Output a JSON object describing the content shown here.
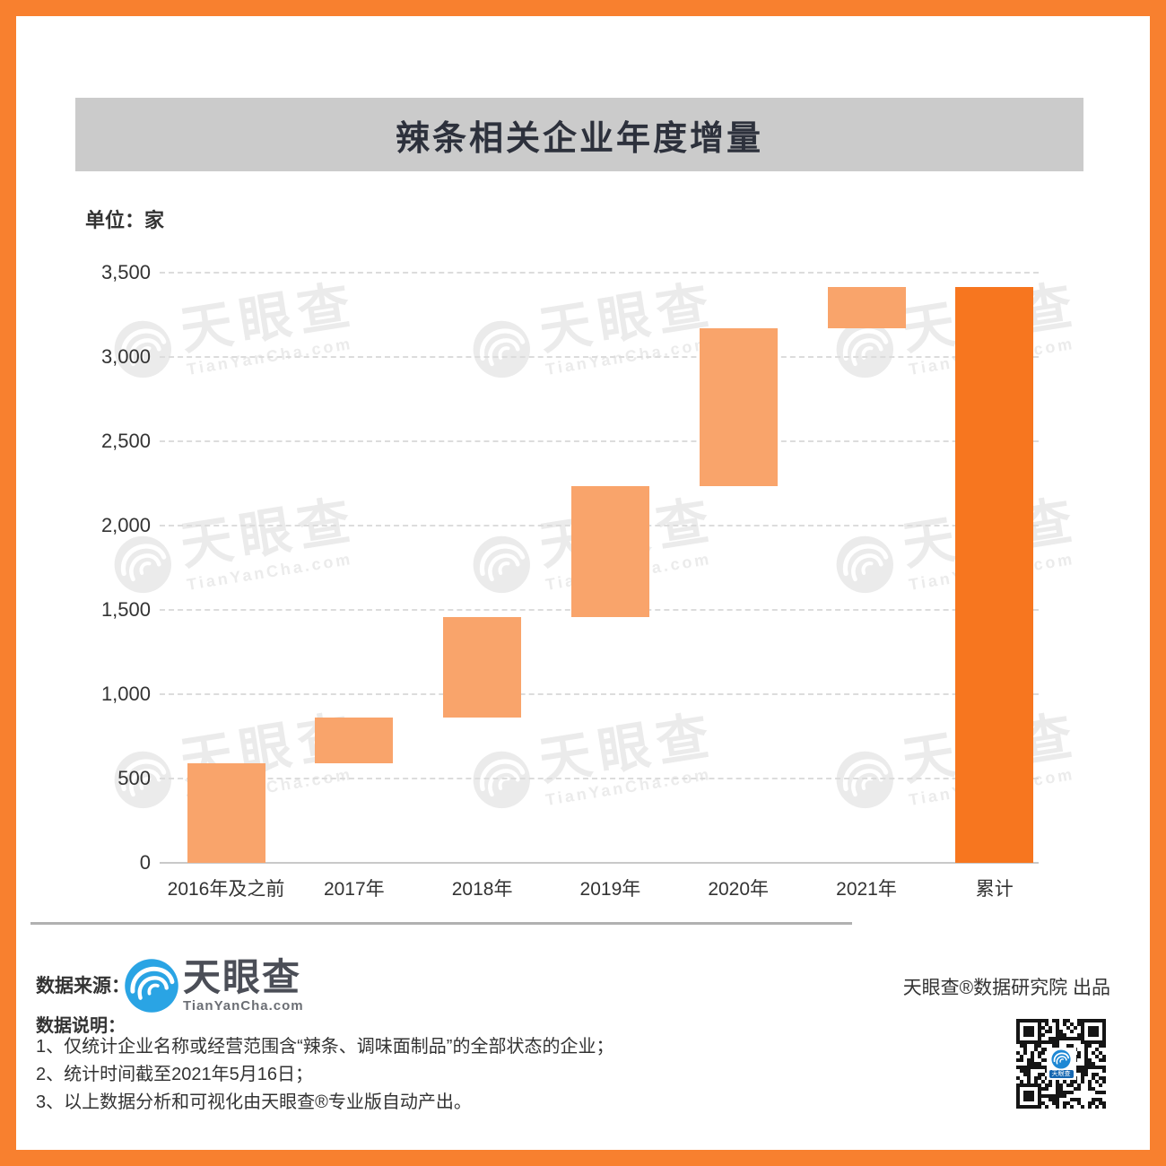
{
  "header": {
    "title": "辣条相关企业年度增量"
  },
  "chart_data": {
    "type": "bar",
    "subtype": "waterfall",
    "title": "辣条相关企业年度增量",
    "unit_label": "单位：家",
    "categories": [
      "2016年及之前",
      "2017年",
      "2018年",
      "2019年",
      "2020年",
      "2021年",
      "累计"
    ],
    "bars": [
      {
        "category": "2016年及之前",
        "start": 0,
        "end": 590,
        "increment": 590,
        "role": "increment"
      },
      {
        "category": "2017年",
        "start": 590,
        "end": 860,
        "increment": 270,
        "role": "increment"
      },
      {
        "category": "2018年",
        "start": 860,
        "end": 1455,
        "increment": 595,
        "role": "increment"
      },
      {
        "category": "2019年",
        "start": 1455,
        "end": 2235,
        "increment": 780,
        "role": "increment"
      },
      {
        "category": "2020年",
        "start": 2235,
        "end": 3170,
        "increment": 935,
        "role": "increment"
      },
      {
        "category": "2021年",
        "start": 3170,
        "end": 3415,
        "increment": 245,
        "role": "increment"
      },
      {
        "category": "累计",
        "start": 0,
        "end": 3415,
        "increment": 3415,
        "role": "total"
      }
    ],
    "y_axis": {
      "min": 0,
      "max": 3500,
      "tick_step": 500,
      "tick_labels": [
        "0",
        "500",
        "1,000",
        "1,500",
        "2,000",
        "2,500",
        "3,000",
        "3,500"
      ]
    },
    "grid": {
      "horizontal": true,
      "style": "dashed"
    },
    "legend": "none",
    "colors": {
      "increment": "#F9A46B",
      "total": "#F7761F"
    }
  },
  "watermark": {
    "brand": "天眼查",
    "domain": "TianYanCha.com"
  },
  "footer": {
    "source_label": "数据来源：",
    "logo_brand": "天眼查",
    "logo_domain": "TianYanCha.com",
    "producer": "天眼查®数据研究院 出品",
    "notes_label": "数据说明：",
    "notes": [
      "1、仅统计企业名称或经营范围含“辣条、调味面制品”的全部状态的企业；",
      "2、统计时间截至2021年5月16日；",
      "3、以上数据分析和可视化由天眼查®专业版自动产出。"
    ],
    "qr_center_label": "天眼查"
  },
  "theme": {
    "page_border": "#F8802F",
    "title_bar_bg": "#CBCBCB",
    "brand_blue": "#2AA4E4",
    "text": "#333333"
  }
}
